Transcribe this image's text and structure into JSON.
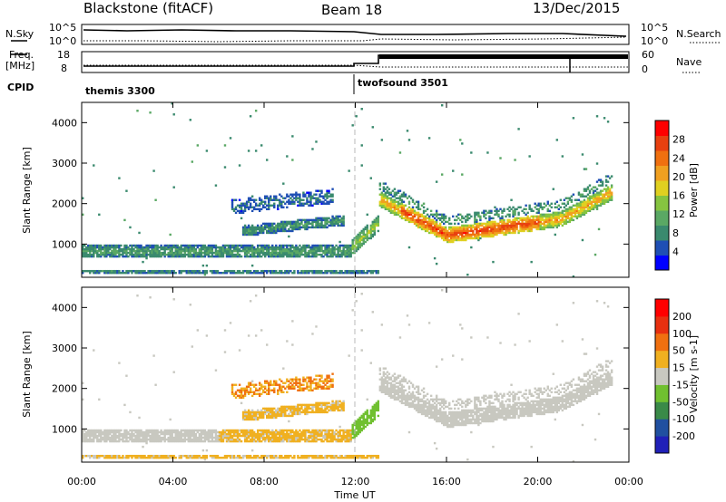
{
  "header": {
    "station": "Blackstone (fitACF)",
    "beam": "Beam 18",
    "date": "13/Dec/2015"
  },
  "summary_panel": {
    "left_label_top": "N.Sky",
    "left_ticks": [
      "10^5",
      "10^0"
    ],
    "right_ticks": [
      "10^5",
      "10^0"
    ],
    "right_label": "N.Search"
  },
  "freq_panel": {
    "left_label_line1": "Freq.",
    "left_label_line2": "[MHz]",
    "left_ticks": [
      "18",
      "8"
    ],
    "right_ticks": [
      "60",
      "0"
    ],
    "right_label": "Nave"
  },
  "cpid": {
    "label": "CPID",
    "segments": [
      {
        "name": "themis 3300",
        "start_hour": 0
      },
      {
        "name": "twofsound 3501",
        "start_hour": 12
      }
    ]
  },
  "colors": {
    "power": [
      "#0000ff",
      "#1f4fb4",
      "#3a8a6e",
      "#5aa864",
      "#86c440",
      "#e0d020",
      "#f0a020",
      "#f07010",
      "#e84010",
      "#ff0000"
    ],
    "velocity": [
      "#2020b8",
      "#2050a0",
      "#3a8a48",
      "#70c030",
      "#c8c8c0",
      "#f0b020",
      "#f07010",
      "#e83010",
      "#ff0000"
    ]
  },
  "chart_data": [
    {
      "type": "heatmap",
      "quantity": "Power",
      "ylabel": "Slant Range [km]",
      "yticks": [
        1000,
        2000,
        3000,
        4000
      ],
      "ylim": [
        180,
        4500
      ],
      "xlim": [
        0,
        24
      ],
      "colorbar_label": "Power [dB]",
      "colorbar_ticks": [
        "28",
        "24",
        "20",
        "16",
        "12",
        "8",
        "4"
      ],
      "colorbar_range": [
        0,
        30
      ]
    },
    {
      "type": "heatmap",
      "quantity": "Velocity",
      "ylabel": "Slant Range [km]",
      "yticks": [
        1000,
        2000,
        3000,
        4000
      ],
      "ylim": [
        180,
        4500
      ],
      "xlim": [
        0,
        24
      ],
      "xticks": [
        "00:00",
        "04:00",
        "08:00",
        "12:00",
        "16:00",
        "20:00",
        "00:00"
      ],
      "xlabel": "Time UT",
      "colorbar_label": "Velocity [m s-1]",
      "colorbar_ticks": [
        "200",
        "100",
        "50",
        "15",
        "-15",
        "-50",
        "-100",
        "-200"
      ]
    }
  ]
}
